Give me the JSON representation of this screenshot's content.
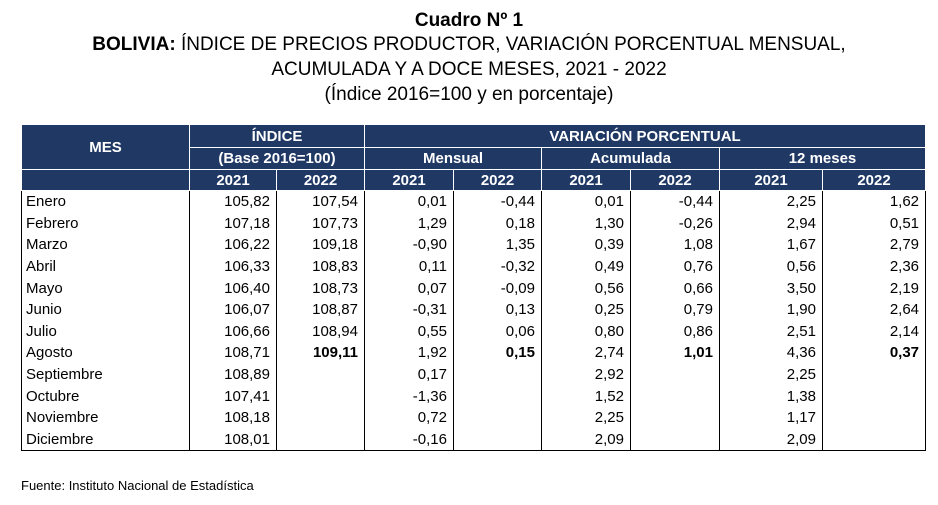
{
  "title": {
    "line1": "Cuadro Nº 1",
    "line2_bold": "BOLIVIA:",
    "line2_rest": " ÍNDICE DE PRECIOS PRODUCTOR, VARIACIÓN PORCENTUAL MENSUAL,",
    "line3": "ACUMULADA Y A DOCE MESES, 2021 - 2022",
    "line4": "(Índice 2016=100 y en porcentaje)"
  },
  "header": {
    "mes": "MES",
    "indice": "ÍNDICE",
    "base": "(Base 2016=100)",
    "variacion": "VARIACIÓN PORCENTUAL",
    "mensual": "Mensual",
    "acumulada": "Acumulada",
    "doce": "12 meses",
    "y2021": "2021",
    "y2022": "2022"
  },
  "rows": [
    {
      "mes": "Enero",
      "i21": "105,82",
      "i22": "107,54",
      "m21": "0,01",
      "m22": "-0,44",
      "a21": "0,01",
      "a22": "-0,44",
      "d21": "2,25",
      "d22": "1,62"
    },
    {
      "mes": "Febrero",
      "i21": "107,18",
      "i22": "107,73",
      "m21": "1,29",
      "m22": "0,18",
      "a21": "1,30",
      "a22": "-0,26",
      "d21": "2,94",
      "d22": "0,51"
    },
    {
      "mes": "Marzo",
      "i21": "106,22",
      "i22": "109,18",
      "m21": "-0,90",
      "m22": "1,35",
      "a21": "0,39",
      "a22": "1,08",
      "d21": "1,67",
      "d22": "2,79"
    },
    {
      "mes": "Abril",
      "i21": "106,33",
      "i22": "108,83",
      "m21": "0,11",
      "m22": "-0,32",
      "a21": "0,49",
      "a22": "0,76",
      "d21": "0,56",
      "d22": "2,36"
    },
    {
      "mes": "Mayo",
      "i21": "106,40",
      "i22": "108,73",
      "m21": "0,07",
      "m22": "-0,09",
      "a21": "0,56",
      "a22": "0,66",
      "d21": "3,50",
      "d22": "2,19"
    },
    {
      "mes": "Junio",
      "i21": "106,07",
      "i22": "108,87",
      "m21": "-0,31",
      "m22": "0,13",
      "a21": "0,25",
      "a22": "0,79",
      "d21": "1,90",
      "d22": "2,64"
    },
    {
      "mes": "Julio",
      "i21": "106,66",
      "i22": "108,94",
      "m21": "0,55",
      "m22": "0,06",
      "a21": "0,80",
      "a22": "0,86",
      "d21": "2,51",
      "d22": "2,14"
    },
    {
      "mes": "Agosto",
      "i21": "108,71",
      "i22": "109,11",
      "m21": "1,92",
      "m22": "0,15",
      "a21": "2,74",
      "a22": "1,01",
      "d21": "4,36",
      "d22": "0,37"
    },
    {
      "mes": "Septiembre",
      "i21": "108,89",
      "i22": "",
      "m21": "0,17",
      "m22": "",
      "a21": "2,92",
      "a22": "",
      "d21": "2,25",
      "d22": ""
    },
    {
      "mes": "Octubre",
      "i21": "107,41",
      "i22": "",
      "m21": "-1,36",
      "m22": "",
      "a21": "1,52",
      "a22": "",
      "d21": "1,38",
      "d22": ""
    },
    {
      "mes": "Noviembre",
      "i21": "108,18",
      "i22": "",
      "m21": "0,72",
      "m22": "",
      "a21": "2,25",
      "a22": "",
      "d21": "1,17",
      "d22": ""
    },
    {
      "mes": "Diciembre",
      "i21": "108,01",
      "i22": "",
      "m21": "-0,16",
      "m22": "",
      "a21": "2,09",
      "a22": "",
      "d21": "2,09",
      "d22": ""
    }
  ],
  "source": "Fuente: Instituto Nacional de Estadística",
  "colors": {
    "header_bg": "#1f3864",
    "header_text": "#ffffff"
  }
}
